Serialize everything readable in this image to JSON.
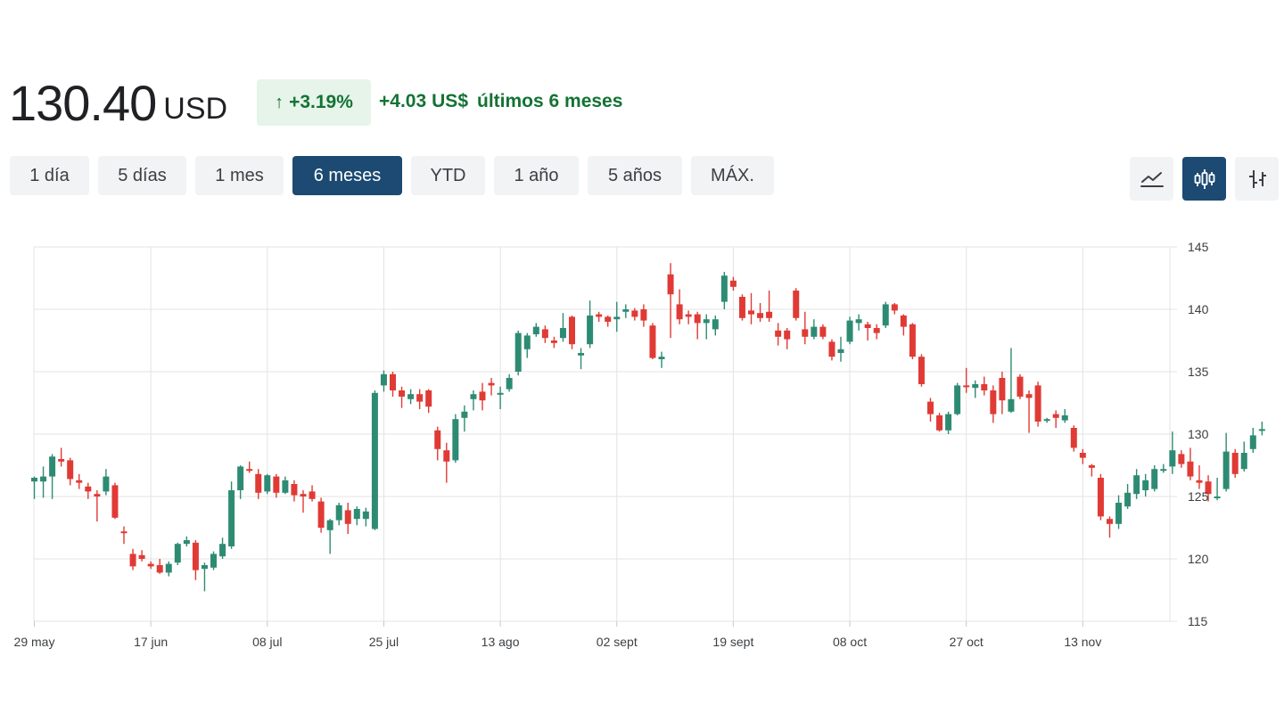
{
  "header": {
    "price": "130.40",
    "currency": "USD",
    "change_arrow": "↑",
    "change_percent": "+3.19%",
    "change_amount": "+4.03",
    "change_currency": "US$",
    "change_period": "últimos 6 meses"
  },
  "ranges": [
    {
      "label": "1 día",
      "active": false
    },
    {
      "label": "5 días",
      "active": false
    },
    {
      "label": "1 mes",
      "active": false
    },
    {
      "label": "6 meses",
      "active": true
    },
    {
      "label": "YTD",
      "active": false
    },
    {
      "label": "1 año",
      "active": false
    },
    {
      "label": "5 años",
      "active": false
    },
    {
      "label": "MÁX.",
      "active": false
    }
  ],
  "chart_views": [
    {
      "icon": "line-chart-icon",
      "active": false
    },
    {
      "icon": "candlestick-chart-icon",
      "active": true
    },
    {
      "icon": "ohlc-chart-icon",
      "active": false
    }
  ],
  "colors": {
    "up": "#2e8b73",
    "down": "#e03a35",
    "accent": "#1c4a72",
    "positive_text": "#137333"
  },
  "chart_data": {
    "type": "candlestick",
    "grid": true,
    "ylim": [
      115,
      145
    ],
    "yticks": [
      115,
      120,
      125,
      130,
      135,
      140,
      145
    ],
    "xticks": [
      {
        "label": "29 may",
        "index": 0
      },
      {
        "label": "17 jun",
        "index": 13
      },
      {
        "label": "08 jul",
        "index": 26
      },
      {
        "label": "25 jul",
        "index": 39
      },
      {
        "label": "13 ago",
        "index": 52
      },
      {
        "label": "02 sept",
        "index": 65
      },
      {
        "label": "19 sept",
        "index": 78
      },
      {
        "label": "08 oct",
        "index": 91
      },
      {
        "label": "27 oct",
        "index": 104
      },
      {
        "label": "13 nov",
        "index": 117
      }
    ],
    "candles": [
      [
        126.2,
        126.5,
        124.8,
        126.6
      ],
      [
        126.2,
        126.6,
        124.9,
        127.4
      ],
      [
        126.6,
        128.2,
        124.8,
        128.4
      ],
      [
        128.0,
        127.8,
        127.4,
        128.9
      ],
      [
        127.9,
        126.4,
        125.9,
        128.1
      ],
      [
        126.3,
        126.1,
        125.6,
        126.8
      ],
      [
        125.8,
        125.4,
        124.8,
        126.1
      ],
      [
        125.2,
        125.0,
        123.0,
        125.5
      ],
      [
        125.4,
        126.6,
        125.1,
        127.2
      ],
      [
        125.9,
        123.3,
        123.2,
        126.1
      ],
      [
        122.2,
        122.1,
        121.2,
        122.6
      ],
      [
        120.4,
        119.4,
        119.1,
        120.8
      ],
      [
        120.3,
        120.0,
        119.8,
        120.7
      ],
      [
        119.6,
        119.4,
        119.2,
        119.8
      ],
      [
        119.5,
        118.9,
        118.8,
        120.0
      ],
      [
        118.9,
        119.6,
        118.6,
        119.8
      ],
      [
        119.7,
        121.2,
        119.5,
        121.3
      ],
      [
        121.2,
        121.5,
        121.0,
        121.8
      ],
      [
        121.3,
        119.1,
        118.3,
        121.5
      ],
      [
        119.2,
        119.5,
        117.4,
        119.7
      ],
      [
        119.3,
        120.4,
        119.1,
        120.6
      ],
      [
        120.2,
        121.2,
        120.0,
        121.7
      ],
      [
        121.0,
        125.5,
        120.8,
        126.2
      ],
      [
        125.5,
        127.4,
        124.8,
        127.5
      ],
      [
        127.2,
        127.1,
        126.9,
        127.8
      ],
      [
        126.8,
        125.3,
        124.8,
        127.2
      ],
      [
        125.4,
        126.7,
        125.2,
        126.8
      ],
      [
        126.6,
        125.3,
        124.9,
        126.8
      ],
      [
        125.3,
        126.3,
        125.2,
        126.6
      ],
      [
        126.0,
        125.1,
        124.6,
        126.3
      ],
      [
        125.2,
        125.0,
        123.7,
        125.5
      ],
      [
        125.4,
        124.8,
        124.6,
        125.9
      ],
      [
        124.6,
        122.5,
        122.1,
        124.9
      ],
      [
        122.3,
        123.1,
        120.4,
        123.2
      ],
      [
        123.1,
        124.3,
        122.7,
        124.5
      ],
      [
        123.9,
        122.8,
        122.0,
        124.5
      ],
      [
        123.2,
        124.0,
        122.7,
        124.2
      ],
      [
        123.2,
        123.8,
        122.6,
        124.1
      ],
      [
        122.4,
        133.3,
        122.3,
        133.5
      ],
      [
        133.9,
        134.8,
        133.4,
        135.1
      ],
      [
        134.8,
        133.5,
        133.0,
        135.0
      ],
      [
        133.5,
        133.0,
        132.1,
        133.8
      ],
      [
        132.8,
        133.2,
        132.4,
        133.6
      ],
      [
        133.2,
        132.6,
        132.0,
        133.6
      ],
      [
        133.5,
        132.2,
        131.7,
        133.6
      ],
      [
        130.3,
        128.8,
        127.9,
        130.6
      ],
      [
        128.7,
        127.8,
        126.1,
        129.3
      ],
      [
        127.9,
        131.2,
        127.7,
        131.6
      ],
      [
        131.3,
        131.8,
        130.2,
        132.3
      ],
      [
        132.8,
        133.2,
        131.9,
        133.5
      ],
      [
        133.4,
        132.7,
        131.9,
        134.1
      ],
      [
        134.1,
        133.9,
        133.1,
        134.5
      ],
      [
        133.2,
        133.3,
        132.0,
        133.8
      ],
      [
        133.6,
        134.5,
        133.4,
        134.8
      ],
      [
        135.0,
        138.1,
        134.7,
        138.3
      ],
      [
        136.8,
        137.9,
        136.1,
        138.1
      ],
      [
        138.0,
        138.6,
        137.8,
        138.9
      ],
      [
        138.4,
        137.7,
        137.3,
        138.7
      ],
      [
        137.5,
        137.3,
        136.9,
        137.8
      ],
      [
        137.7,
        138.5,
        137.4,
        139.7
      ],
      [
        139.4,
        137.2,
        136.8,
        139.5
      ],
      [
        136.3,
        136.5,
        135.2,
        136.9
      ],
      [
        137.2,
        139.5,
        136.9,
        140.7
      ],
      [
        139.6,
        139.4,
        139.0,
        139.8
      ],
      [
        139.4,
        139.0,
        138.6,
        139.5
      ],
      [
        139.2,
        139.4,
        138.2,
        140.6
      ],
      [
        139.8,
        140.0,
        139.3,
        140.4
      ],
      [
        139.9,
        139.4,
        139.1,
        140.1
      ],
      [
        140.0,
        139.1,
        138.6,
        140.4
      ],
      [
        138.7,
        136.1,
        136.0,
        138.9
      ],
      [
        136.0,
        136.2,
        135.3,
        136.6
      ],
      [
        142.8,
        141.2,
        137.7,
        143.7
      ],
      [
        140.4,
        139.2,
        138.8,
        141.6
      ],
      [
        139.6,
        139.4,
        138.8,
        139.9
      ],
      [
        139.6,
        138.9,
        137.6,
        139.8
      ],
      [
        138.9,
        139.2,
        137.6,
        139.6
      ],
      [
        138.4,
        139.2,
        137.9,
        139.5
      ],
      [
        140.6,
        142.7,
        140.0,
        143.0
      ],
      [
        142.3,
        141.8,
        141.5,
        142.6
      ],
      [
        141.0,
        139.3,
        139.1,
        141.2
      ],
      [
        139.9,
        139.6,
        138.8,
        141.3
      ],
      [
        139.7,
        139.3,
        139.0,
        140.5
      ],
      [
        139.8,
        139.3,
        139.0,
        141.5
      ],
      [
        138.3,
        137.8,
        137.1,
        138.9
      ],
      [
        138.3,
        137.6,
        136.8,
        138.5
      ],
      [
        141.5,
        139.3,
        139.1,
        141.7
      ],
      [
        138.4,
        137.8,
        137.2,
        139.8
      ],
      [
        137.8,
        138.6,
        137.6,
        139.2
      ],
      [
        138.6,
        137.8,
        137.6,
        138.8
      ],
      [
        137.4,
        136.2,
        135.9,
        137.6
      ],
      [
        136.5,
        136.8,
        135.8,
        137.8
      ],
      [
        137.4,
        139.1,
        137.2,
        139.4
      ],
      [
        138.9,
        139.2,
        138.3,
        139.6
      ],
      [
        138.8,
        138.5,
        137.5,
        139.0
      ],
      [
        138.5,
        138.1,
        137.6,
        138.8
      ],
      [
        138.7,
        140.4,
        138.5,
        140.6
      ],
      [
        140.4,
        139.9,
        139.6,
        140.5
      ],
      [
        139.5,
        138.6,
        137.9,
        139.6
      ],
      [
        138.8,
        136.2,
        136.0,
        138.9
      ],
      [
        136.2,
        134.0,
        133.8,
        136.4
      ],
      [
        132.6,
        131.6,
        131.0,
        132.9
      ],
      [
        131.5,
        130.3,
        130.2,
        131.7
      ],
      [
        130.3,
        131.6,
        130.0,
        131.8
      ],
      [
        131.6,
        133.9,
        131.5,
        134.1
      ],
      [
        133.9,
        133.8,
        133.3,
        135.3
      ],
      [
        133.7,
        134.0,
        132.9,
        134.3
      ],
      [
        134.0,
        133.5,
        133.1,
        134.6
      ],
      [
        133.5,
        131.6,
        130.9,
        133.9
      ],
      [
        134.5,
        132.7,
        131.6,
        135.0
      ],
      [
        131.8,
        132.8,
        131.7,
        136.9
      ],
      [
        134.6,
        133.0,
        132.8,
        134.8
      ],
      [
        133.2,
        132.9,
        130.1,
        133.5
      ],
      [
        133.9,
        131.0,
        130.6,
        134.2
      ],
      [
        131.1,
        131.2,
        130.9,
        131.3
      ],
      [
        131.6,
        131.3,
        130.5,
        131.9
      ],
      [
        131.1,
        131.5,
        130.9,
        132.0
      ],
      [
        130.5,
        128.9,
        128.6,
        130.7
      ],
      [
        128.5,
        128.1,
        127.6,
        128.8
      ],
      [
        127.5,
        127.3,
        126.6,
        127.6
      ],
      [
        126.5,
        123.4,
        123.1,
        126.8
      ],
      [
        123.2,
        122.8,
        121.7,
        123.4
      ],
      [
        122.8,
        124.5,
        122.4,
        125.1
      ],
      [
        124.2,
        125.3,
        124.0,
        126.0
      ],
      [
        125.2,
        126.7,
        124.8,
        127.2
      ],
      [
        125.5,
        126.3,
        125.0,
        126.8
      ],
      [
        125.6,
        127.2,
        125.4,
        127.5
      ],
      [
        127.2,
        127.2,
        126.9,
        127.6
      ],
      [
        127.4,
        128.7,
        126.8,
        130.2
      ],
      [
        128.4,
        127.6,
        127.3,
        128.7
      ],
      [
        127.8,
        126.6,
        126.3,
        128.9
      ],
      [
        126.3,
        126.1,
        125.6,
        127.5
      ],
      [
        126.2,
        125.2,
        124.6,
        126.7
      ],
      [
        125.0,
        125.0,
        124.7,
        126.5
      ],
      [
        125.6,
        128.6,
        125.4,
        130.1
      ],
      [
        128.5,
        126.8,
        126.5,
        128.8
      ],
      [
        127.2,
        128.5,
        127.0,
        129.4
      ],
      [
        128.8,
        129.9,
        128.5,
        130.5
      ],
      [
        130.3,
        130.4,
        129.9,
        131.0
      ]
    ]
  }
}
